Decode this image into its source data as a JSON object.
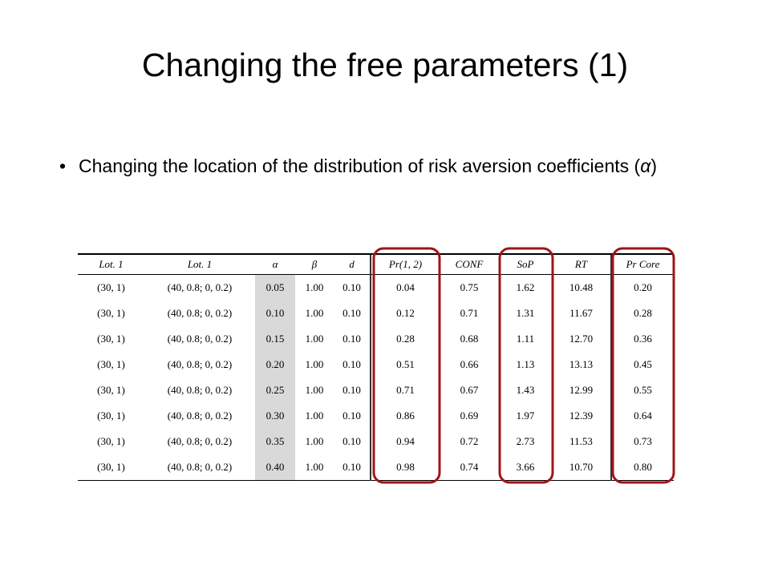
{
  "title": "Changing the free parameters (1)",
  "bullet": {
    "text_before": "Changing the location of the distribution of risk aversion coefficients (",
    "symbol": "α",
    "text_after": ")"
  },
  "table": {
    "header": [
      "Lot. 1",
      "Lot. 1",
      "α",
      "β",
      "d",
      "Pr(1, 2)",
      "CONF",
      "SoP",
      "RT",
      "Pr Core"
    ],
    "rows": [
      [
        "(30, 1)",
        "(40, 0.8; 0, 0.2)",
        "0.05",
        "1.00",
        "0.10",
        "0.04",
        "0.75",
        "1.62",
        "10.48",
        "0.20"
      ],
      [
        "(30, 1)",
        "(40, 0.8; 0, 0.2)",
        "0.10",
        "1.00",
        "0.10",
        "0.12",
        "0.71",
        "1.31",
        "11.67",
        "0.28"
      ],
      [
        "(30, 1)",
        "(40, 0.8; 0, 0.2)",
        "0.15",
        "1.00",
        "0.10",
        "0.28",
        "0.68",
        "1.11",
        "12.70",
        "0.36"
      ],
      [
        "(30, 1)",
        "(40, 0.8; 0, 0.2)",
        "0.20",
        "1.00",
        "0.10",
        "0.51",
        "0.66",
        "1.13",
        "13.13",
        "0.45"
      ],
      [
        "(30, 1)",
        "(40, 0.8; 0, 0.2)",
        "0.25",
        "1.00",
        "0.10",
        "0.71",
        "0.67",
        "1.43",
        "12.99",
        "0.55"
      ],
      [
        "(30, 1)",
        "(40, 0.8; 0, 0.2)",
        "0.30",
        "1.00",
        "0.10",
        "0.86",
        "0.69",
        "1.97",
        "12.39",
        "0.64"
      ],
      [
        "(30, 1)",
        "(40, 0.8; 0, 0.2)",
        "0.35",
        "1.00",
        "0.10",
        "0.94",
        "0.72",
        "2.73",
        "11.53",
        "0.73"
      ],
      [
        "(30, 1)",
        "(40, 0.8; 0, 0.2)",
        "0.40",
        "1.00",
        "0.10",
        "0.98",
        "0.74",
        "3.66",
        "10.70",
        "0.80"
      ]
    ]
  }
}
